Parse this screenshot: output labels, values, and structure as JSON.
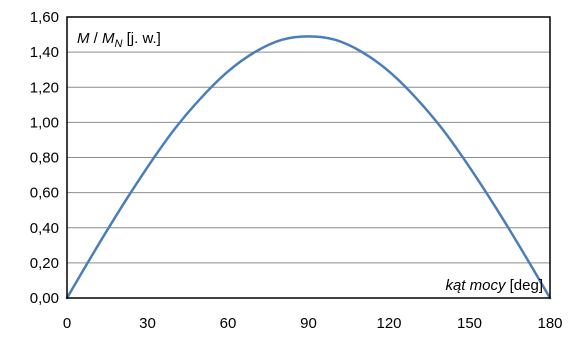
{
  "chart_data": {
    "type": "line",
    "ylabel": {
      "symbol": "M",
      "separator": " / ",
      "symbol2": "M",
      "subscript": "N",
      "unit": " [j. w.]"
    },
    "xlabel": {
      "name": "kąt mocy",
      "unit": " [deg]"
    },
    "xlim": [
      0,
      180
    ],
    "ylim": [
      0,
      1.6
    ],
    "x_ticks": [
      0,
      30,
      60,
      90,
      120,
      150,
      180
    ],
    "x_tick_labels": [
      "0",
      "30",
      "60",
      "90",
      "120",
      "150",
      "180"
    ],
    "y_ticks": [
      0,
      0.2,
      0.4,
      0.6,
      0.8,
      1.0,
      1.2,
      1.4,
      1.6
    ],
    "y_tick_labels": [
      "0,00",
      "0,20",
      "0,40",
      "0,60",
      "0,80",
      "1,00",
      "1,20",
      "1,40",
      "1,60"
    ],
    "grid": {
      "horizontal": true,
      "vertical": false
    },
    "series": [
      {
        "color": "#4a7ebb",
        "x": [
          0,
          10,
          20,
          30,
          40,
          50,
          60,
          70,
          80,
          90,
          100,
          110,
          120,
          130,
          140,
          150,
          160,
          170,
          180
        ],
        "y": [
          0,
          0.26,
          0.51,
          0.745,
          0.96,
          1.14,
          1.29,
          1.4,
          1.47,
          1.49,
          1.47,
          1.4,
          1.29,
          1.14,
          0.96,
          0.745,
          0.51,
          0.26,
          0
        ]
      }
    ]
  }
}
